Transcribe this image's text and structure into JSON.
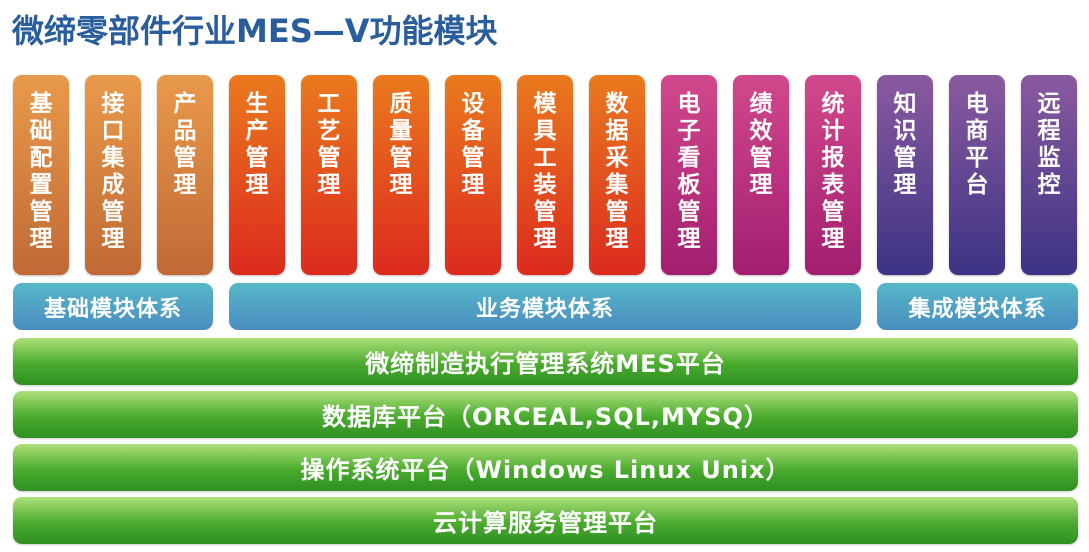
{
  "title": "微缔零部件行业MES—V功能模块",
  "modules": [
    {
      "label": "基础配置管理",
      "group": "base"
    },
    {
      "label": "接口集成管理",
      "group": "base"
    },
    {
      "label": "产品管理",
      "group": "base"
    },
    {
      "label": "生产管理",
      "group": "biz"
    },
    {
      "label": "工艺管理",
      "group": "biz"
    },
    {
      "label": "质量管理",
      "group": "biz"
    },
    {
      "label": "设备管理",
      "group": "biz"
    },
    {
      "label": "模具工装管理",
      "group": "biz"
    },
    {
      "label": "数据采集管理",
      "group": "biz"
    },
    {
      "label": "电子看板管理",
      "group": "biz2"
    },
    {
      "label": "绩效管理",
      "group": "biz2"
    },
    {
      "label": "统计报表管理",
      "group": "biz2"
    },
    {
      "label": "知识管理",
      "group": "int"
    },
    {
      "label": "电商平台",
      "group": "int"
    },
    {
      "label": "远程监控",
      "group": "int"
    }
  ],
  "systems": {
    "base": "基础模块体系",
    "business": "业务模块体系",
    "integration": "集成模块体系"
  },
  "platforms": [
    "微缔制造执行管理系统MES平台",
    "数据库平台（ORCEAL,SQL,MYSQ）",
    "操作系统平台（Windows Linux Unix）",
    "云计算服务管理平台"
  ],
  "colors": {
    "title": "#2a5d9c",
    "base": "#d98040",
    "business": "#e2461e",
    "business_alt": "#bb2f7e",
    "integration": "#5a4490",
    "system_bar": "#4fa6c4",
    "platform": "#4aab2e"
  }
}
